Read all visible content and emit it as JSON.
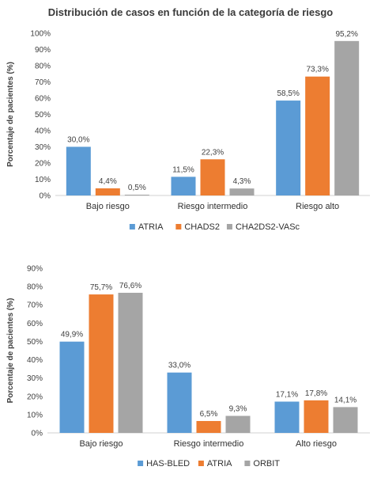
{
  "title": "Distribución de casos en función de la categoría de riesgo",
  "chart_data": [
    {
      "type": "bar",
      "categories": [
        "Bajo riesgo",
        "Riesgo intermedio",
        "Riesgo alto"
      ],
      "series": [
        {
          "name": "ATRIA",
          "color": "#5b9bd5",
          "values": [
            30.0,
            11.5,
            58.5
          ],
          "labels": [
            "30,0%",
            "11,5%",
            "58,5%"
          ]
        },
        {
          "name": "CHADS2",
          "color": "#ed7d31",
          "values": [
            4.4,
            22.3,
            73.3
          ],
          "labels": [
            "4,4%",
            "22,3%",
            "73,3%"
          ]
        },
        {
          "name": "CHA2DS2-VASc",
          "color": "#a5a5a5",
          "values": [
            0.5,
            4.3,
            95.2
          ],
          "labels": [
            "0,5%",
            "4,3%",
            "95,2%"
          ]
        }
      ],
      "ylabel": "Porcentaje de pacientes (%)",
      "ylim": [
        0,
        100
      ],
      "yticks": [
        "0%",
        "10%",
        "20%",
        "30%",
        "40%",
        "50%",
        "60%",
        "70%",
        "80%",
        "90%",
        "100%"
      ],
      "grid": false,
      "legend": "bottom"
    },
    {
      "type": "bar",
      "categories": [
        "Bajo riesgo",
        "Riesgo intermedio",
        "Alto riesgo"
      ],
      "series": [
        {
          "name": "HAS-BLED",
          "color": "#5b9bd5",
          "values": [
            49.9,
            33.0,
            17.1
          ],
          "labels": [
            "49,9%",
            "33,0%",
            "17,1%"
          ]
        },
        {
          "name": "ATRIA",
          "color": "#ed7d31",
          "values": [
            75.7,
            6.5,
            17.8
          ],
          "labels": [
            "75,7%",
            "6,5%",
            "17,8%"
          ]
        },
        {
          "name": "ORBIT",
          "color": "#a5a5a5",
          "values": [
            76.6,
            9.3,
            14.1
          ],
          "labels": [
            "76,6%",
            "9,3%",
            "14,1%"
          ]
        }
      ],
      "ylabel": "Porcentaje de pacientes (%)",
      "ylim": [
        0,
        90
      ],
      "yticks": [
        "0%",
        "10%",
        "20%",
        "30%",
        "40%",
        "50%",
        "60%",
        "70%",
        "80%",
        "90%"
      ],
      "grid": false,
      "legend": "bottom"
    }
  ]
}
